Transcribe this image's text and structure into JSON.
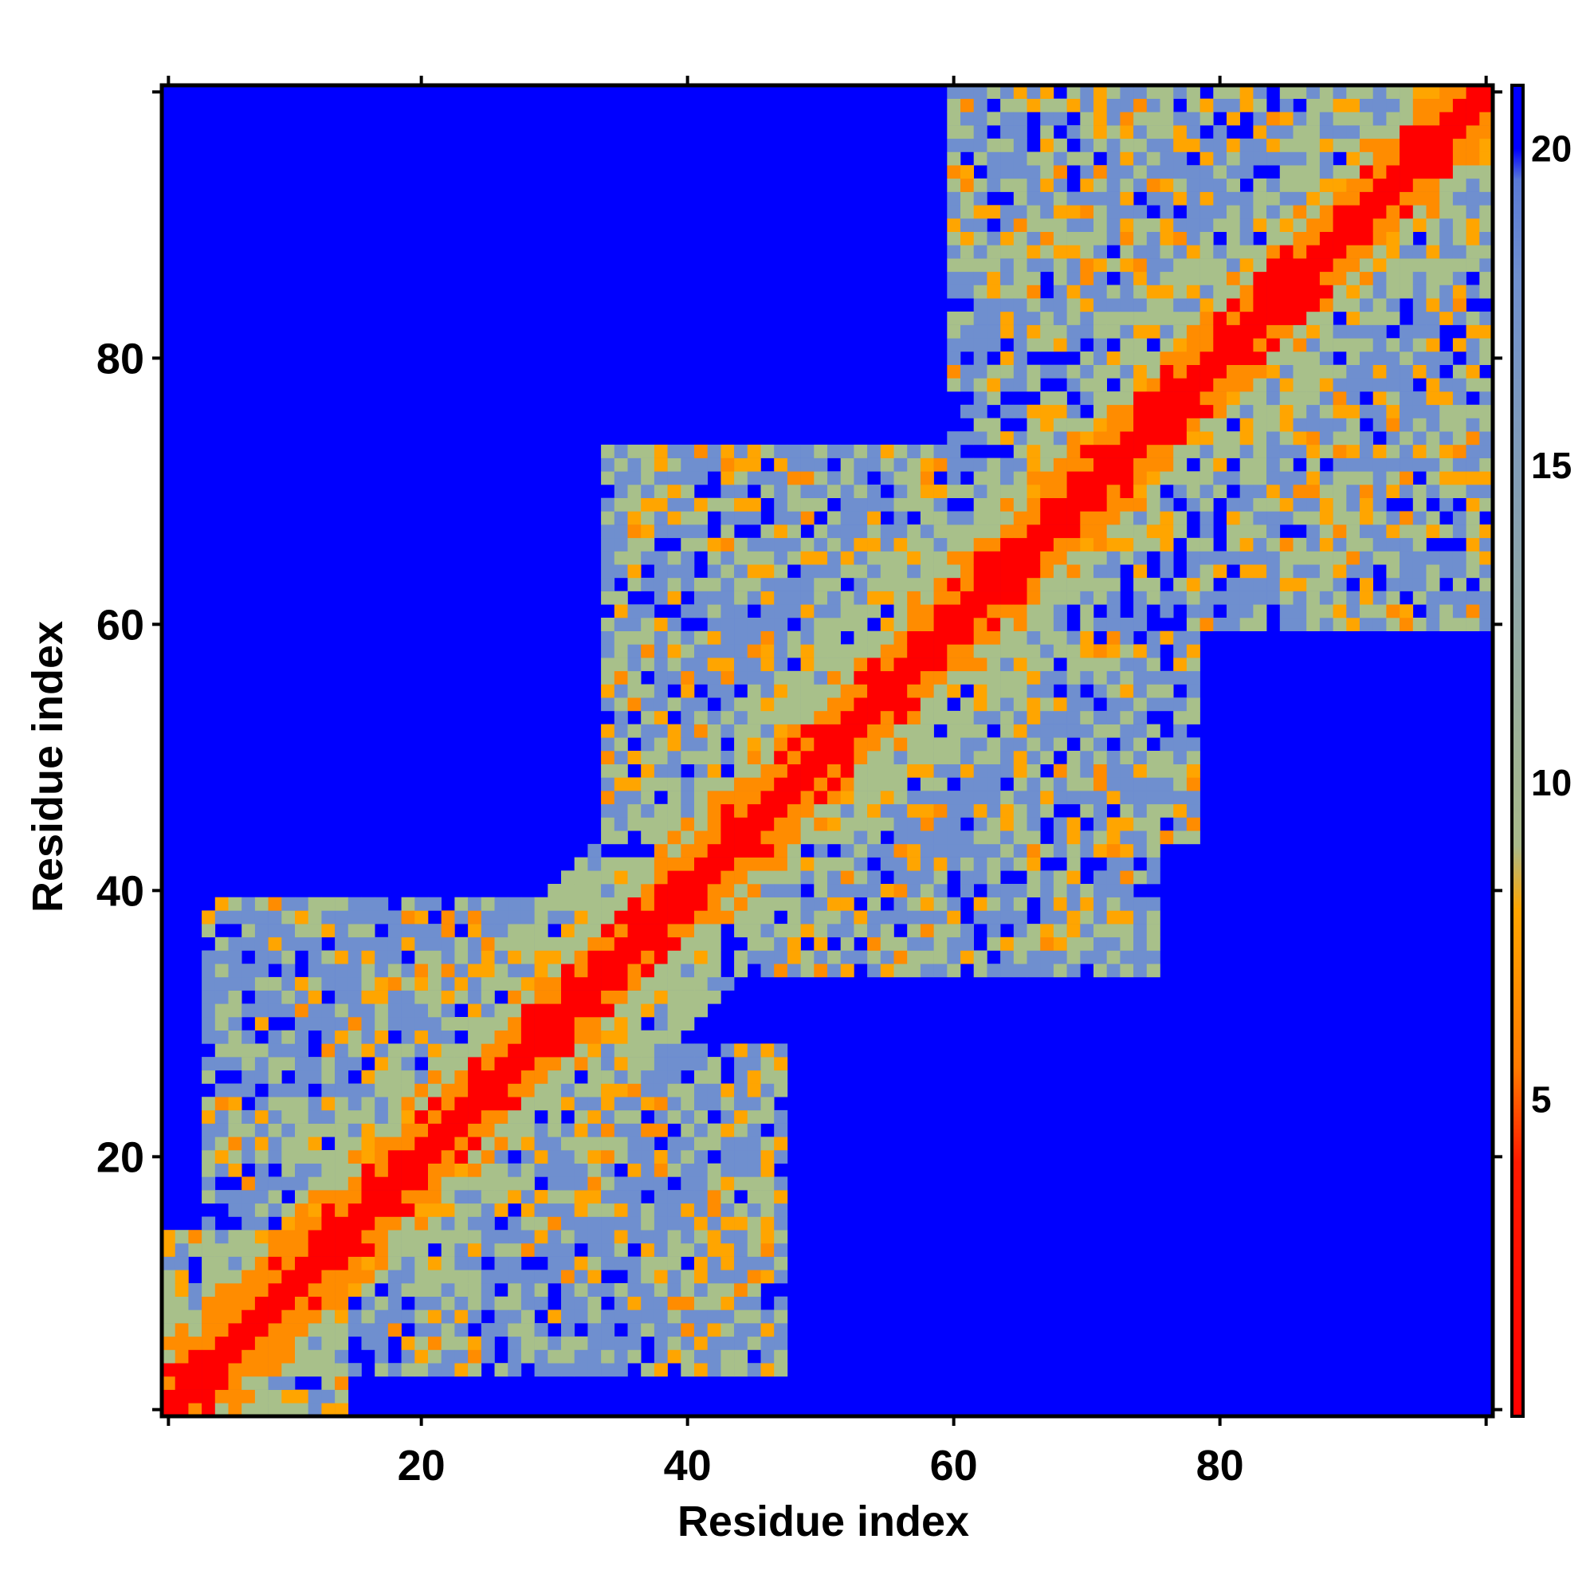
{
  "chart_data": {
    "type": "heatmap",
    "title": "",
    "xlabel": "Residue index",
    "ylabel": "Residue index",
    "xlim": [
      1,
      100
    ],
    "ylim": [
      1,
      100
    ],
    "n_residues": 100,
    "x_ticks": [
      20,
      40,
      60,
      80
    ],
    "y_ticks": [
      20,
      40,
      60,
      80
    ],
    "colorbar": {
      "ticks": [
        5,
        10,
        15,
        20
      ],
      "range": [
        0,
        21
      ],
      "stops": [
        {
          "value": 0,
          "color": "#ff0000"
        },
        {
          "value": 4,
          "color": "#ff1a00"
        },
        {
          "value": 5.5,
          "color": "#ff7a00"
        },
        {
          "value": 8,
          "color": "#ffa500"
        },
        {
          "value": 9,
          "color": "#a8b98a"
        },
        {
          "value": 18,
          "color": "#6f8fcf"
        },
        {
          "value": 19.5,
          "color": "#5a7ad6"
        },
        {
          "value": 20,
          "color": "#0000ff"
        }
      ]
    },
    "colors": {
      "no_contact": "#0000ff",
      "diagonal": "#ff0000",
      "near": "#ff8c00",
      "mid": "#a8c08a",
      "far": "#6f8fcf"
    },
    "value_description": "distance matrix (Å) between residues; diagonal = 0, symmetric, values > 20 shown as blue",
    "contact_blocks": [
      {
        "x": [
          1,
          14
        ],
        "y": [
          1,
          14
        ]
      },
      {
        "x": [
          4,
          37
        ],
        "y": [
          15,
          39
        ]
      },
      {
        "x": [
          15,
          47
        ],
        "y": [
          4,
          28
        ]
      },
      {
        "x": [
          34,
          78
        ],
        "y": [
          44,
          73
        ]
      },
      {
        "x": [
          46,
          75
        ],
        "y": [
          34,
          55
        ]
      },
      {
        "x": [
          60,
          100
        ],
        "y": [
          72,
          100
        ]
      },
      {
        "x": [
          74,
          100
        ],
        "y": [
          60,
          85
        ]
      }
    ]
  }
}
